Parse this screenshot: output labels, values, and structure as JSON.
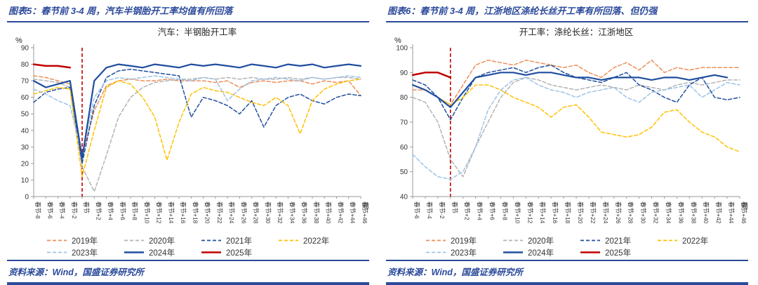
{
  "panels": [
    {
      "header": "图表5：春节前 3-4 周，汽车半钢胎开工率均值有所回落",
      "source": "资料来源：Wind，国盛证券研究所"
    },
    {
      "header": "图表6：春节前 3-4 周，江浙地区涤纶长丝开工率有所回落、但仍强",
      "source": "资料来源：Wind，国盛证券研究所"
    }
  ],
  "colors": {
    "header_blue": "#2B4A9B",
    "festival_red": "#C00000"
  },
  "chart_data": [
    {
      "type": "line",
      "title": "汽车：半钢胎开工率",
      "ylabel": "%",
      "xlabel": "周",
      "ylim": [
        0,
        90
      ],
      "yticks": [
        0,
        10,
        20,
        30,
        40,
        50,
        60,
        70,
        80,
        90
      ],
      "grid": false,
      "legend_position": "bottom",
      "festival_line": {
        "category": "春节",
        "color": "#C00000"
      },
      "categories": [
        "春节-8",
        "春节-6",
        "春节-4",
        "春节-2",
        "春节",
        "春节+2",
        "春节+4",
        "春节+6",
        "春节+8",
        "春节+10",
        "春节+12",
        "春节+14",
        "春节+16",
        "春节+18",
        "春节+20",
        "春节+22",
        "春节+24",
        "春节+26",
        "春节+28",
        "春节+30",
        "春节+32",
        "春节+34",
        "春节+36",
        "春节+38",
        "春节+40",
        "春节+42",
        "春节+44",
        "春节+46"
      ],
      "series": [
        {
          "name": "2019年",
          "color": "#ED8E59",
          "style": "dashed",
          "values": [
            73,
            72,
            70,
            68,
            25,
            52,
            67,
            70,
            71,
            70,
            70,
            71,
            70,
            70,
            70,
            69,
            70,
            66,
            69,
            70,
            69,
            70,
            70,
            68,
            70,
            69,
            70,
            61
          ]
        },
        {
          "name": "2020年",
          "color": "#B3B3B3",
          "style": "dashed",
          "values": [
            71,
            70,
            69,
            66,
            18,
            3,
            25,
            48,
            60,
            66,
            69,
            70,
            71,
            71,
            72,
            71,
            72,
            71,
            72,
            71,
            71,
            72,
            71,
            72,
            71,
            72,
            72,
            71
          ]
        },
        {
          "name": "2021年",
          "color": "#1F4E9E",
          "style": "dashed",
          "values": [
            57,
            63,
            65,
            66,
            20,
            55,
            72,
            76,
            77,
            76,
            75,
            74,
            73,
            48,
            60,
            58,
            55,
            50,
            58,
            42,
            55,
            60,
            62,
            58,
            56,
            60,
            62,
            61
          ]
        },
        {
          "name": "2022年",
          "color": "#FFC000",
          "style": "dashed",
          "values": [
            62,
            64,
            66,
            65,
            12,
            40,
            66,
            70,
            68,
            60,
            48,
            22,
            45,
            62,
            66,
            64,
            63,
            60,
            57,
            55,
            60,
            55,
            38,
            58,
            65,
            68,
            70,
            71
          ]
        },
        {
          "name": "2023年",
          "color": "#9DC3E6",
          "style": "dashed",
          "values": [
            65,
            62,
            58,
            55,
            25,
            60,
            70,
            72,
            71,
            72,
            73,
            72,
            71,
            70,
            72,
            71,
            58,
            65,
            70,
            71,
            72,
            71,
            70,
            72,
            71,
            72,
            73,
            72
          ]
        },
        {
          "name": "2024年",
          "color": "#1F4E9E",
          "style": "solid",
          "values": [
            70,
            66,
            68,
            70,
            23,
            70,
            78,
            80,
            79,
            78,
            80,
            79,
            78,
            80,
            79,
            80,
            79,
            78,
            80,
            79,
            78,
            80,
            79,
            80,
            78,
            79,
            80,
            79
          ]
        },
        {
          "name": "2025年",
          "color": "#C00000",
          "style": "solid",
          "values": [
            80,
            79,
            79,
            78,
            null,
            null,
            null,
            null,
            null,
            null,
            null,
            null,
            null,
            null,
            null,
            null,
            null,
            null,
            null,
            null,
            null,
            null,
            null,
            null,
            null,
            null,
            null,
            null
          ]
        }
      ]
    },
    {
      "type": "line",
      "title": "开工率：涤纶长丝：江浙地区",
      "ylabel": "%",
      "xlabel": "周",
      "ylim": [
        40,
        100
      ],
      "yticks": [
        40,
        50,
        60,
        70,
        80,
        90,
        100
      ],
      "grid": false,
      "legend_position": "bottom",
      "festival_line": {
        "category": "春节",
        "color": "#C00000"
      },
      "categories": [
        "春节-6",
        "春节-4",
        "春节-2",
        "春节",
        "春节+2",
        "春节+4",
        "春节+6",
        "春节+8",
        "春节+10",
        "春节+12",
        "春节+14",
        "春节+16",
        "春节+18",
        "春节+20",
        "春节+22",
        "春节+24",
        "春节+26",
        "春节+28",
        "春节+30",
        "春节+32",
        "春节+34",
        "春节+36",
        "春节+38",
        "春节+40",
        "春节+42",
        "春节+44",
        "春节+46"
      ],
      "series": [
        {
          "name": "2019年",
          "color": "#ED8E59",
          "style": "dashed",
          "values": [
            83,
            83,
            80,
            77,
            85,
            93,
            95,
            94,
            93,
            95,
            94,
            93,
            92,
            93,
            90,
            88,
            92,
            94,
            91,
            95,
            90,
            92,
            91,
            92,
            92,
            92,
            92
          ]
        },
        {
          "name": "2020年",
          "color": "#B3B3B3",
          "style": "dashed",
          "values": [
            80,
            78,
            70,
            55,
            48,
            60,
            70,
            80,
            86,
            88,
            87,
            85,
            84,
            83,
            84,
            85,
            84,
            83,
            85,
            84,
            83,
            85,
            86,
            85,
            86,
            87,
            87
          ]
        },
        {
          "name": "2021年",
          "color": "#1F4E9E",
          "style": "dashed",
          "values": [
            87,
            85,
            80,
            71,
            80,
            88,
            90,
            91,
            92,
            90,
            92,
            93,
            90,
            88,
            87,
            86,
            88,
            90,
            85,
            83,
            80,
            78,
            85,
            88,
            80,
            79,
            80
          ]
        },
        {
          "name": "2022年",
          "color": "#FFC000",
          "style": "dashed",
          "values": [
            85,
            83,
            80,
            77,
            80,
            85,
            85,
            83,
            80,
            78,
            76,
            72,
            76,
            77,
            72,
            66,
            65,
            64,
            65,
            68,
            74,
            75,
            70,
            66,
            64,
            60,
            58
          ]
        },
        {
          "name": "2023年",
          "color": "#9DC3E6",
          "style": "dashed",
          "values": [
            57,
            52,
            48,
            47,
            50,
            60,
            75,
            83,
            87,
            88,
            85,
            83,
            82,
            80,
            82,
            83,
            84,
            80,
            78,
            82,
            83,
            84,
            85,
            80,
            83,
            86,
            85
          ]
        },
        {
          "name": "2024年",
          "color": "#1F4E9E",
          "style": "solid",
          "values": [
            85,
            83,
            80,
            76,
            82,
            88,
            89,
            90,
            90,
            89,
            90,
            90,
            89,
            88,
            88,
            87,
            88,
            88,
            88,
            87,
            88,
            88,
            87,
            88,
            89,
            88,
            null
          ]
        },
        {
          "name": "2025年",
          "color": "#C00000",
          "style": "solid",
          "values": [
            89,
            90,
            90,
            88,
            null,
            null,
            null,
            null,
            null,
            null,
            null,
            null,
            null,
            null,
            null,
            null,
            null,
            null,
            null,
            null,
            null,
            null,
            null,
            null,
            null,
            null,
            null
          ]
        }
      ]
    }
  ]
}
